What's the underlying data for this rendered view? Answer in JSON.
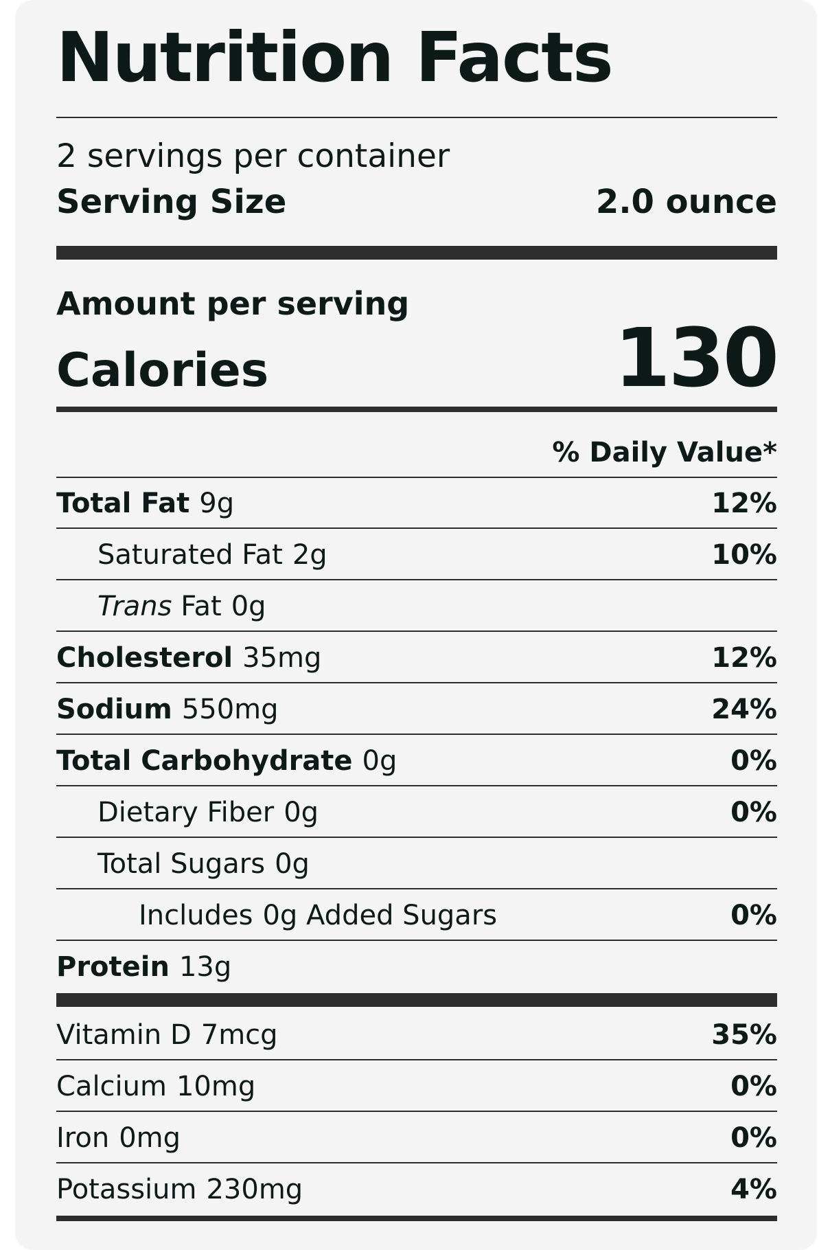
{
  "label": {
    "title": "Nutrition Facts",
    "servings_per_container": "2 servings per container",
    "serving_size_label": "Serving Size",
    "serving_size_value": "2.0 ounce",
    "amount_per_serving": "Amount per serving",
    "calories_label": "Calories",
    "calories_value": "130",
    "daily_value_header": "% Daily Value*"
  },
  "nutrients": [
    {
      "name": "Total Fat",
      "amount": "9g",
      "dv": "12%"
    },
    {
      "name": "Saturated Fat",
      "amount": "2g",
      "dv": "10%"
    },
    {
      "name_italic": "Trans",
      "name": "Fat",
      "amount": "0g",
      "dv": ""
    },
    {
      "name": "Cholesterol",
      "amount": "35mg",
      "dv": "12%"
    },
    {
      "name": "Sodium",
      "amount": "550mg",
      "dv": "24%"
    },
    {
      "name": "Total Carbohydrate",
      "amount": "0g",
      "dv": "0%"
    },
    {
      "name": "Dietary Fiber",
      "amount": "0g",
      "dv": "0%"
    },
    {
      "name": "Total Sugars",
      "amount": "0g",
      "dv": ""
    },
    {
      "name": "Includes",
      "amount": "0g",
      "name_suffix": "Added Sugars",
      "dv": "0%"
    },
    {
      "name": "Protein",
      "amount": "13g",
      "dv": ""
    }
  ],
  "vitamins": [
    {
      "name": "Vitamin D",
      "amount": "7mcg",
      "dv": "35%"
    },
    {
      "name": "Calcium",
      "amount": "10mg",
      "dv": "0%"
    },
    {
      "name": "Iron",
      "amount": "0mg",
      "dv": "0%"
    },
    {
      "name": "Potassium",
      "amount": "230mg",
      "dv": "4%"
    }
  ]
}
